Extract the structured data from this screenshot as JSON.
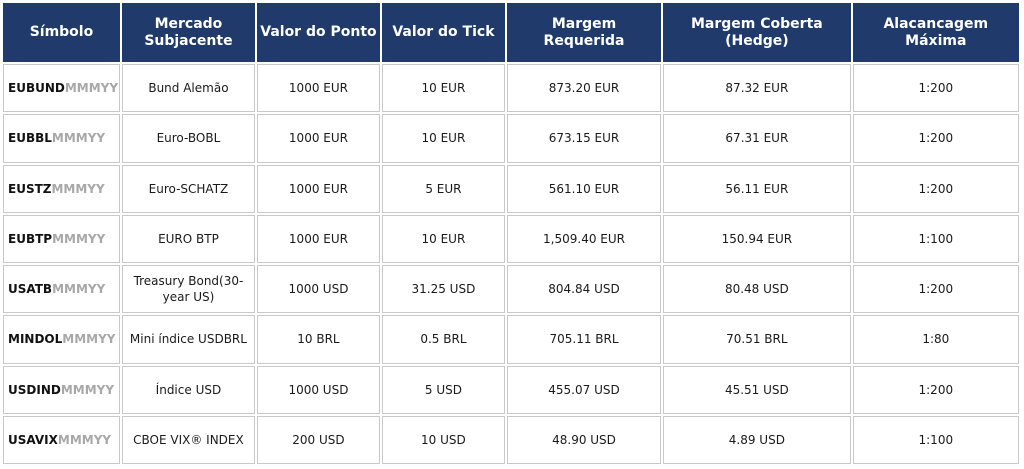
{
  "headers": {
    "symbol": "Símbolo",
    "underlying_l1": "Mercado",
    "underlying_l2": "Subjacente",
    "point_value": "Valor do Ponto",
    "tick_value": "Valor do Tick",
    "margin_l1": "Margem",
    "margin_l2": "Requerida",
    "hedge_l1": "Margem Coberta",
    "hedge_l2": "(Hedge)",
    "leverage_l1": "Alacancagem",
    "leverage_l2": "Máxima"
  },
  "rows": [
    {
      "symbol": "EUBUND",
      "suffix": "MMMYY",
      "underlying": "Bund Alemão",
      "point_value": "1000 EUR",
      "tick_value": "10 EUR",
      "margin": "873.20 EUR",
      "hedge": "87.32 EUR",
      "leverage": "1:200"
    },
    {
      "symbol": "EUBBL",
      "suffix": "MMMYY",
      "underlying": "Euro-BOBL",
      "point_value": "1000 EUR",
      "tick_value": "10 EUR",
      "margin": "673.15 EUR",
      "hedge": "67.31 EUR",
      "leverage": "1:200"
    },
    {
      "symbol": "EUSTZ",
      "suffix": "MMMYY",
      "underlying": "Euro-SCHATZ",
      "point_value": "1000 EUR",
      "tick_value": "5 EUR",
      "margin": "561.10 EUR",
      "hedge": "56.11 EUR",
      "leverage": "1:200"
    },
    {
      "symbol": "EUBTP",
      "suffix": "MMMYY",
      "underlying": "EURO BTP",
      "point_value": "1000 EUR",
      "tick_value": "10 EUR",
      "margin": "1,509.40 EUR",
      "hedge": "150.94 EUR",
      "leverage": "1:100"
    },
    {
      "symbol": "USATB",
      "suffix": "MMMYY",
      "underlying": "Treasury Bond(30-year US)",
      "point_value": "1000 USD",
      "tick_value": "31.25 USD",
      "margin": "804.84 USD",
      "hedge": "80.48 USD",
      "leverage": "1:200"
    },
    {
      "symbol": "MINDOL",
      "suffix": "MMMYY",
      "underlying": "Mini índice USDBRL",
      "point_value": "10 BRL",
      "tick_value": "0.5 BRL",
      "margin": "705.11 BRL",
      "hedge": "70.51 BRL",
      "leverage": "1:80"
    },
    {
      "symbol": "USDIND",
      "suffix": "MMMYY",
      "underlying": "Índice USD",
      "point_value": "1000 USD",
      "tick_value": "5 USD",
      "margin": "455.07 USD",
      "hedge": "45.51 USD",
      "leverage": "1:200"
    },
    {
      "symbol": "USAVIX",
      "suffix": "MMMYY",
      "underlying": "CBOE VIX® INDEX",
      "point_value": "200 USD",
      "tick_value": "10 USD",
      "margin": "48.90 USD",
      "hedge": "4.89 USD",
      "leverage": "1:100"
    }
  ]
}
